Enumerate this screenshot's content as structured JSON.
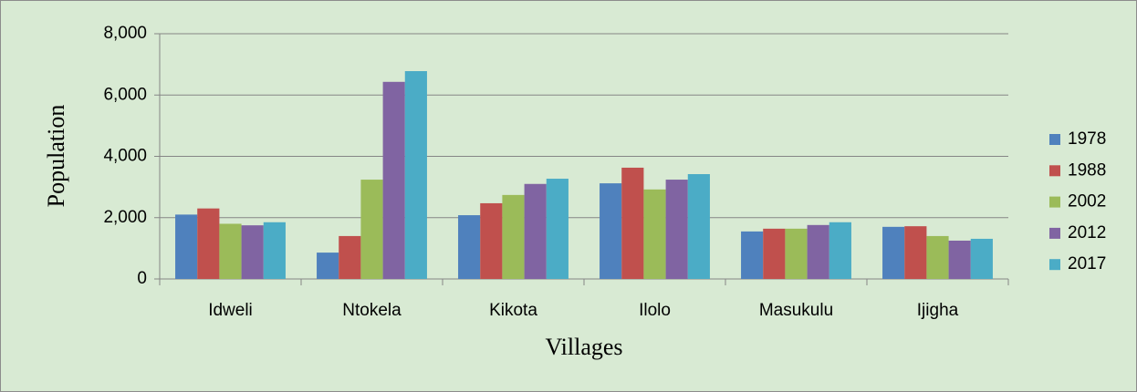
{
  "chart_data": {
    "type": "bar",
    "x_label": "Villages",
    "y_label": "Population",
    "categories": [
      "Idweli",
      "Ntokela",
      "Kikota",
      "Ilolo",
      "Masukulu",
      "Ijigha"
    ],
    "series": [
      {
        "name": "1978",
        "color": "#4f81bd",
        "values": [
          2100,
          860,
          2080,
          3120,
          1550,
          1700
        ]
      },
      {
        "name": "1988",
        "color": "#c0504d",
        "values": [
          2300,
          1400,
          2470,
          3630,
          1640,
          1720
        ]
      },
      {
        "name": "2002",
        "color": "#9bbb59",
        "values": [
          1800,
          3240,
          2740,
          2920,
          1640,
          1400
        ]
      },
      {
        "name": "2012",
        "color": "#8064a2",
        "values": [
          1750,
          6430,
          3100,
          3240,
          1760,
          1250
        ]
      },
      {
        "name": "2017",
        "color": "#4bacc6",
        "values": [
          1850,
          6780,
          3270,
          3420,
          1850,
          1310
        ]
      }
    ],
    "ylim": [
      0,
      8000
    ],
    "yticks": [
      0,
      {
        "value": 2000,
        "label": "2,000"
      },
      {
        "value": 4000,
        "label": "4,000"
      },
      {
        "value": 6000,
        "label": "6,000"
      },
      {
        "value": 8000,
        "label": "8,000"
      }
    ],
    "grid": true,
    "legend": "right"
  }
}
